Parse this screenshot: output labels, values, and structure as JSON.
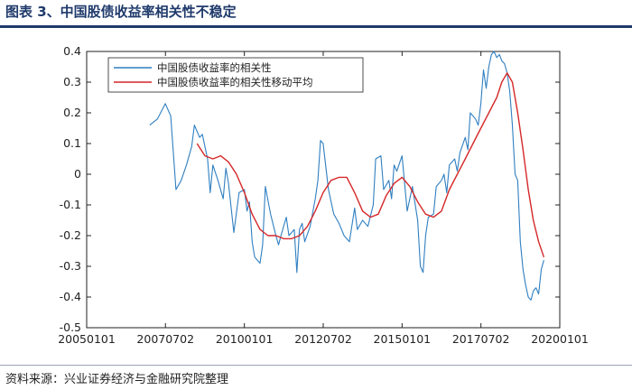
{
  "header": {
    "title": "图表 3、中国股债收益率相关性不稳定"
  },
  "footer": {
    "source": "资料来源：兴业证券经济与金融研究院整理"
  },
  "colors": {
    "title": "#1f3a6b",
    "series_raw": "#2f7fc1",
    "series_ma": "#d62728"
  },
  "chart_data": {
    "type": "line",
    "title": "",
    "xlabel": "",
    "ylabel": "",
    "x_is_date": true,
    "xlim": [
      "2005-01-01",
      "2020-01-01"
    ],
    "ylim": [
      -0.5,
      0.4
    ],
    "xticks": [
      "20050101",
      "20070702",
      "20100101",
      "20120702",
      "20150101",
      "20170702",
      "20200101"
    ],
    "yticks": [
      "0.4",
      "0.3",
      "0.2",
      "0.1",
      "0",
      "-0.1",
      "-0.2",
      "-0.3",
      "-0.4",
      "-0.5"
    ],
    "grid": false,
    "legend_position": "top-left",
    "series": [
      {
        "name": "中国股债收益率的相关性",
        "color": "#2f7fc1",
        "points": [
          [
            "2007-01-01",
            0.16
          ],
          [
            "2007-04-01",
            0.18
          ],
          [
            "2007-07-01",
            0.23
          ],
          [
            "2007-09-01",
            0.19
          ],
          [
            "2007-11-01",
            -0.05
          ],
          [
            "2008-01-01",
            -0.02
          ],
          [
            "2008-03-01",
            0.03
          ],
          [
            "2008-05-01",
            0.09
          ],
          [
            "2008-06-01",
            0.16
          ],
          [
            "2008-08-01",
            0.12
          ],
          [
            "2008-09-01",
            0.13
          ],
          [
            "2008-11-01",
            0.05
          ],
          [
            "2008-12-01",
            -0.06
          ],
          [
            "2009-01-01",
            0.03
          ],
          [
            "2009-03-01",
            -0.02
          ],
          [
            "2009-05-01",
            -0.08
          ],
          [
            "2009-06-01",
            0.02
          ],
          [
            "2009-07-01",
            -0.03
          ],
          [
            "2009-09-01",
            -0.19
          ],
          [
            "2009-11-01",
            -0.06
          ],
          [
            "2010-01-01",
            -0.05
          ],
          [
            "2010-02-01",
            -0.12
          ],
          [
            "2010-03-01",
            -0.09
          ],
          [
            "2010-04-01",
            -0.22
          ],
          [
            "2010-05-01",
            -0.27
          ],
          [
            "2010-07-01",
            -0.29
          ],
          [
            "2010-08-01",
            -0.23
          ],
          [
            "2010-09-01",
            -0.04
          ],
          [
            "2010-11-01",
            -0.13
          ],
          [
            "2011-01-01",
            -0.2
          ],
          [
            "2011-02-01",
            -0.23
          ],
          [
            "2011-03-01",
            -0.2
          ],
          [
            "2011-05-01",
            -0.14
          ],
          [
            "2011-06-01",
            -0.2
          ],
          [
            "2011-08-01",
            -0.18
          ],
          [
            "2011-09-01",
            -0.32
          ],
          [
            "2011-10-01",
            -0.18
          ],
          [
            "2011-11-01",
            -0.16
          ],
          [
            "2011-12-01",
            -0.22
          ],
          [
            "2012-02-01",
            -0.17
          ],
          [
            "2012-04-01",
            -0.08
          ],
          [
            "2012-05-01",
            -0.02
          ],
          [
            "2012-06-01",
            0.11
          ],
          [
            "2012-07-01",
            0.1
          ],
          [
            "2012-09-01",
            -0.05
          ],
          [
            "2012-11-01",
            -0.13
          ],
          [
            "2013-01-01",
            -0.16
          ],
          [
            "2013-03-01",
            -0.2
          ],
          [
            "2013-05-01",
            -0.22
          ],
          [
            "2013-07-01",
            -0.11
          ],
          [
            "2013-08-01",
            -0.18
          ],
          [
            "2013-10-01",
            -0.15
          ],
          [
            "2013-12-01",
            -0.17
          ],
          [
            "2014-02-01",
            -0.1
          ],
          [
            "2014-03-01",
            0.05
          ],
          [
            "2014-05-01",
            0.06
          ],
          [
            "2014-06-01",
            -0.05
          ],
          [
            "2014-08-01",
            -0.02
          ],
          [
            "2014-09-01",
            -0.08
          ],
          [
            "2014-10-01",
            0.03
          ],
          [
            "2014-11-01",
            0.01
          ],
          [
            "2015-01-01",
            0.06
          ],
          [
            "2015-03-01",
            -0.12
          ],
          [
            "2015-04-01",
            -0.08
          ],
          [
            "2015-05-01",
            -0.04
          ],
          [
            "2015-07-01",
            -0.15
          ],
          [
            "2015-08-01",
            -0.3
          ],
          [
            "2015-09-01",
            -0.32
          ],
          [
            "2015-10-01",
            -0.2
          ],
          [
            "2015-11-01",
            -0.14
          ],
          [
            "2016-01-01",
            -0.13
          ],
          [
            "2016-02-01",
            -0.04
          ],
          [
            "2016-04-01",
            -0.02
          ],
          [
            "2016-05-01",
            0.0
          ],
          [
            "2016-06-01",
            -0.06
          ],
          [
            "2016-07-01",
            0.03
          ],
          [
            "2016-09-01",
            0.05
          ],
          [
            "2016-10-01",
            0.01
          ],
          [
            "2016-11-01",
            0.07
          ],
          [
            "2017-01-01",
            0.12
          ],
          [
            "2017-02-01",
            0.08
          ],
          [
            "2017-03-01",
            0.2
          ],
          [
            "2017-05-01",
            0.18
          ],
          [
            "2017-06-01",
            0.16
          ],
          [
            "2017-07-01",
            0.23
          ],
          [
            "2017-08-01",
            0.34
          ],
          [
            "2017-09-01",
            0.28
          ],
          [
            "2017-10-01",
            0.35
          ],
          [
            "2017-11-01",
            0.39
          ],
          [
            "2017-12-01",
            0.4
          ],
          [
            "2018-01-01",
            0.38
          ],
          [
            "2018-02-01",
            0.39
          ],
          [
            "2018-03-01",
            0.37
          ],
          [
            "2018-04-01",
            0.36
          ],
          [
            "2018-05-01",
            0.33
          ],
          [
            "2018-06-01",
            0.27
          ],
          [
            "2018-07-01",
            0.16
          ],
          [
            "2018-08-01",
            0.0
          ],
          [
            "2018-09-01",
            -0.02
          ],
          [
            "2018-10-01",
            -0.22
          ],
          [
            "2018-11-01",
            -0.31
          ],
          [
            "2018-12-01",
            -0.36
          ],
          [
            "2019-01-01",
            -0.4
          ],
          [
            "2019-02-01",
            -0.41
          ],
          [
            "2019-03-01",
            -0.38
          ],
          [
            "2019-04-01",
            -0.37
          ],
          [
            "2019-05-01",
            -0.39
          ],
          [
            "2019-06-01",
            -0.31
          ],
          [
            "2019-07-01",
            -0.28
          ]
        ]
      },
      {
        "name": "中国股债收益率的相关性移动平均",
        "color": "#d62728",
        "points": [
          [
            "2008-07-01",
            0.1
          ],
          [
            "2008-10-01",
            0.06
          ],
          [
            "2009-01-01",
            0.05
          ],
          [
            "2009-04-01",
            0.06
          ],
          [
            "2009-07-01",
            0.04
          ],
          [
            "2009-10-01",
            0.0
          ],
          [
            "2010-01-01",
            -0.06
          ],
          [
            "2010-04-01",
            -0.13
          ],
          [
            "2010-07-01",
            -0.18
          ],
          [
            "2010-10-01",
            -0.2
          ],
          [
            "2011-01-01",
            -0.2
          ],
          [
            "2011-04-01",
            -0.21
          ],
          [
            "2011-07-01",
            -0.21
          ],
          [
            "2011-10-01",
            -0.2
          ],
          [
            "2012-01-01",
            -0.17
          ],
          [
            "2012-04-01",
            -0.12
          ],
          [
            "2012-07-01",
            -0.06
          ],
          [
            "2012-10-01",
            -0.02
          ],
          [
            "2013-01-01",
            -0.01
          ],
          [
            "2013-04-01",
            -0.01
          ],
          [
            "2013-07-01",
            -0.06
          ],
          [
            "2013-10-01",
            -0.12
          ],
          [
            "2014-01-01",
            -0.14
          ],
          [
            "2014-04-01",
            -0.13
          ],
          [
            "2014-07-01",
            -0.07
          ],
          [
            "2014-10-01",
            -0.03
          ],
          [
            "2015-01-01",
            -0.01
          ],
          [
            "2015-04-01",
            -0.04
          ],
          [
            "2015-07-01",
            -0.09
          ],
          [
            "2015-10-01",
            -0.13
          ],
          [
            "2016-01-01",
            -0.14
          ],
          [
            "2016-04-01",
            -0.12
          ],
          [
            "2016-07-01",
            -0.05
          ],
          [
            "2016-10-01",
            0.0
          ],
          [
            "2017-01-01",
            0.05
          ],
          [
            "2017-04-01",
            0.1
          ],
          [
            "2017-07-01",
            0.15
          ],
          [
            "2017-10-01",
            0.2
          ],
          [
            "2018-01-01",
            0.25
          ],
          [
            "2018-03-01",
            0.3
          ],
          [
            "2018-05-01",
            0.33
          ],
          [
            "2018-07-01",
            0.3
          ],
          [
            "2018-09-01",
            0.2
          ],
          [
            "2018-11-01",
            0.08
          ],
          [
            "2019-01-01",
            -0.05
          ],
          [
            "2019-03-01",
            -0.15
          ],
          [
            "2019-05-01",
            -0.22
          ],
          [
            "2019-07-01",
            -0.27
          ]
        ]
      }
    ]
  }
}
